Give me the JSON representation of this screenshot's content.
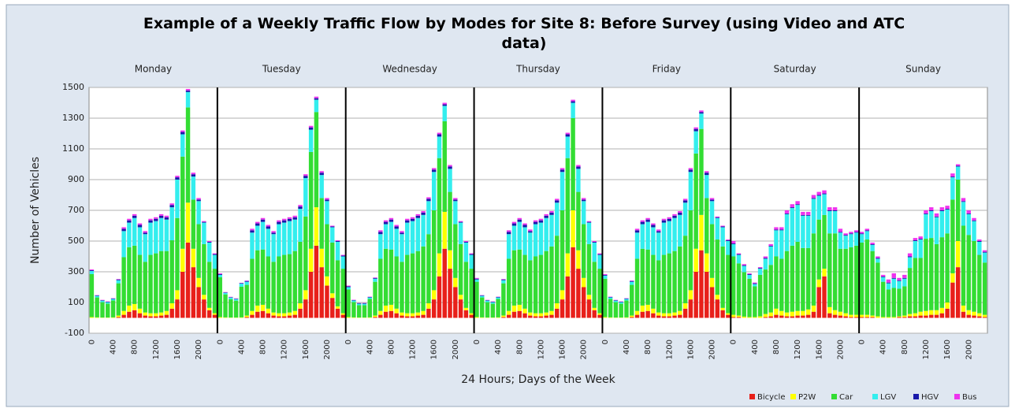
{
  "chart_data": {
    "type": "stacked_bar",
    "title": "Example of a Weekly Traffic Flow by Modes for Site 8: Before Survey (using Video and ATC data)",
    "xlabel": "24 Hours; Days of the Week",
    "ylabel": "Number of Vehicles",
    "days": [
      "Monday",
      "Tuesday",
      "Wednesday",
      "Thursday",
      "Friday",
      "Saturday",
      "Sunday"
    ],
    "categories": [
      "0",
      null,
      null,
      null,
      "400",
      null,
      null,
      null,
      "800",
      null,
      null,
      null,
      "1200",
      null,
      null,
      null,
      "1600",
      null,
      null,
      null,
      "2000",
      null,
      null,
      null,
      "0",
      null,
      null,
      null,
      "400",
      null,
      null,
      null,
      "800",
      null,
      null,
      null,
      "1200",
      null,
      null,
      null,
      "1600",
      null,
      null,
      null,
      "2000",
      null,
      null,
      null,
      "0",
      null,
      null,
      null,
      "400",
      null,
      null,
      null,
      "800",
      null,
      null,
      null,
      "1200",
      null,
      null,
      null,
      "1600",
      null,
      null,
      null,
      "2000",
      null,
      null,
      null,
      "0",
      null,
      null,
      null,
      "400",
      null,
      null,
      null,
      "800",
      null,
      null,
      null,
      "1200",
      null,
      null,
      null,
      "1600",
      null,
      null,
      null,
      "2000",
      null,
      null,
      null,
      "0",
      null,
      null,
      null,
      "400",
      null,
      null,
      null,
      "800",
      null,
      null,
      null,
      "1200",
      null,
      null,
      null,
      "1600",
      null,
      null,
      null,
      "2000",
      null,
      null,
      null,
      "0",
      null,
      null,
      null,
      "400",
      null,
      null,
      null,
      "800",
      null,
      null,
      null,
      "1200",
      null,
      null,
      null,
      "1600",
      null,
      null,
      null,
      "2000",
      null,
      null,
      null,
      "0",
      null,
      null,
      null,
      "400",
      null,
      null,
      null,
      "800",
      null,
      null,
      null,
      "1200",
      null,
      null,
      null,
      "1600",
      null,
      null,
      null,
      "2000",
      null,
      null,
      null
    ],
    "ylim": [
      -100,
      1500
    ],
    "yticks": [
      -100,
      100,
      300,
      500,
      700,
      900,
      1100,
      1300,
      1500
    ],
    "grid": true,
    "legend": "bottom-right",
    "series": [
      {
        "name": "Bicycle",
        "color": "#e8201a",
        "values": [
          0,
          0,
          0,
          0,
          0,
          5,
          20,
          40,
          50,
          30,
          15,
          10,
          10,
          15,
          20,
          60,
          120,
          300,
          490,
          330,
          200,
          120,
          50,
          20,
          0,
          0,
          0,
          0,
          0,
          5,
          20,
          40,
          45,
          30,
          15,
          10,
          10,
          15,
          20,
          60,
          120,
          300,
          470,
          330,
          210,
          130,
          60,
          20,
          0,
          0,
          0,
          0,
          0,
          5,
          20,
          40,
          45,
          30,
          15,
          10,
          10,
          15,
          20,
          60,
          120,
          270,
          450,
          320,
          200,
          120,
          50,
          20,
          0,
          0,
          0,
          0,
          0,
          5,
          20,
          40,
          45,
          30,
          15,
          10,
          10,
          15,
          20,
          60,
          120,
          270,
          460,
          320,
          200,
          120,
          50,
          20,
          0,
          0,
          0,
          0,
          0,
          5,
          20,
          40,
          45,
          30,
          15,
          10,
          10,
          15,
          20,
          60,
          120,
          300,
          440,
          300,
          200,
          120,
          50,
          20,
          5,
          5,
          0,
          0,
          0,
          0,
          5,
          10,
          20,
          15,
          10,
          10,
          15,
          15,
          20,
          40,
          200,
          270,
          30,
          20,
          15,
          10,
          5,
          5,
          5,
          5,
          5,
          0,
          0,
          0,
          0,
          5,
          5,
          10,
          10,
          15,
          15,
          20,
          20,
          30,
          60,
          230,
          330,
          40,
          20,
          15,
          10,
          5
        ]
      },
      {
        "name": "P2W",
        "color": "#ffff00",
        "values": [
          5,
          3,
          2,
          2,
          3,
          10,
          25,
          40,
          40,
          30,
          20,
          20,
          20,
          20,
          25,
          35,
          60,
          150,
          260,
          120,
          60,
          30,
          15,
          10,
          5,
          3,
          2,
          2,
          3,
          10,
          25,
          40,
          40,
          30,
          20,
          20,
          20,
          20,
          25,
          35,
          60,
          150,
          250,
          120,
          60,
          30,
          15,
          10,
          5,
          3,
          2,
          2,
          3,
          10,
          25,
          40,
          40,
          30,
          20,
          20,
          20,
          20,
          25,
          35,
          60,
          150,
          240,
          120,
          60,
          30,
          15,
          10,
          5,
          3,
          2,
          2,
          3,
          10,
          25,
          40,
          40,
          30,
          20,
          20,
          20,
          20,
          25,
          35,
          60,
          150,
          240,
          120,
          60,
          30,
          15,
          10,
          5,
          3,
          2,
          2,
          3,
          10,
          25,
          40,
          40,
          30,
          20,
          20,
          20,
          20,
          25,
          35,
          60,
          150,
          230,
          120,
          60,
          30,
          15,
          10,
          15,
          10,
          8,
          5,
          5,
          10,
          20,
          25,
          40,
          30,
          25,
          30,
          30,
          30,
          35,
          40,
          50,
          50,
          40,
          30,
          25,
          20,
          15,
          15,
          15,
          15,
          10,
          10,
          5,
          5,
          5,
          5,
          10,
          15,
          20,
          25,
          30,
          30,
          30,
          35,
          40,
          60,
          170,
          40,
          30,
          25,
          20,
          15
        ]
      },
      {
        "name": "Car",
        "color": "#33dd33",
        "values": [
          280,
          130,
          100,
          90,
          110,
          210,
          350,
          380,
          380,
          350,
          330,
          380,
          390,
          400,
          390,
          410,
          470,
          600,
          620,
          320,
          350,
          330,
          300,
          290,
          260,
          150,
          120,
          110,
          200,
          200,
          340,
          360,
          360,
          340,
          330,
          370,
          380,
          380,
          390,
          400,
          480,
          630,
          620,
          330,
          340,
          330,
          300,
          290,
          180,
          100,
          80,
          80,
          120,
          220,
          340,
          370,
          360,
          340,
          330,
          380,
          390,
          400,
          420,
          450,
          520,
          620,
          590,
          380,
          350,
          330,
          300,
          290,
          230,
          130,
          100,
          90,
          120,
          210,
          340,
          360,
          360,
          350,
          340,
          370,
          380,
          400,
          420,
          440,
          520,
          620,
          600,
          380,
          350,
          330,
          300,
          290,
          250,
          120,
          100,
          90,
          110,
          200,
          340,
          370,
          360,
          350,
          340,
          380,
          390,
          400,
          420,
          440,
          520,
          620,
          560,
          360,
          350,
          360,
          400,
          380,
          380,
          340,
          290,
          250,
          200,
          270,
          290,
          310,
          340,
          340,
          400,
          430,
          450,
          410,
          400,
          470,
          390,
          350,
          480,
          500,
          410,
          420,
          440,
          450,
          470,
          490,
          420,
          350,
          230,
          180,
          190,
          180,
          190,
          300,
          360,
          350,
          470,
          470,
          430,
          460,
          450,
          480,
          400,
          520,
          490,
          460,
          380,
          340
        ]
      },
      {
        "name": "LGV",
        "color": "#33eeee",
        "values": [
          20,
          10,
          10,
          10,
          10,
          20,
          170,
          160,
          180,
          180,
          180,
          210,
          210,
          215,
          205,
          215,
          250,
          145,
          100,
          150,
          150,
          140,
          125,
          90,
          15,
          10,
          10,
          10,
          20,
          20,
          170,
          160,
          180,
          180,
          180,
          210,
          210,
          215,
          205,
          215,
          250,
          145,
          80,
          150,
          150,
          100,
          120,
          80,
          15,
          10,
          10,
          10,
          10,
          20,
          160,
          160,
          180,
          180,
          180,
          210,
          210,
          215,
          205,
          215,
          250,
          140,
          100,
          150,
          150,
          140,
          125,
          90,
          15,
          10,
          10,
          10,
          10,
          20,
          160,
          160,
          180,
          180,
          180,
          210,
          210,
          215,
          205,
          215,
          250,
          140,
          100,
          150,
          150,
          140,
          125,
          90,
          20,
          10,
          10,
          10,
          10,
          20,
          170,
          160,
          180,
          180,
          180,
          210,
          210,
          215,
          205,
          215,
          250,
          145,
          100,
          150,
          150,
          140,
          125,
          90,
          80,
          55,
          40,
          25,
          15,
          40,
          70,
          120,
          170,
          185,
          240,
          245,
          240,
          210,
          210,
          225,
          155,
          135,
          145,
          145,
          105,
          85,
          85,
          85,
          55,
          55,
          40,
          25,
          30,
          40,
          60,
          50,
          50,
          70,
          110,
          120,
          160,
          175,
          175,
          170,
          155,
          145,
          85,
          155,
          135,
          130,
          85,
          65
        ]
      },
      {
        "name": "HGV",
        "color": "#1a1aaa",
        "values": [
          5,
          3,
          3,
          3,
          3,
          5,
          15,
          15,
          15,
          15,
          10,
          15,
          15,
          15,
          15,
          15,
          15,
          15,
          10,
          15,
          10,
          5,
          5,
          5,
          5,
          3,
          3,
          3,
          3,
          5,
          15,
          15,
          15,
          15,
          10,
          15,
          15,
          15,
          15,
          15,
          15,
          15,
          10,
          15,
          10,
          5,
          5,
          5,
          5,
          3,
          3,
          3,
          3,
          5,
          15,
          15,
          15,
          15,
          10,
          15,
          15,
          15,
          15,
          15,
          15,
          15,
          10,
          15,
          10,
          5,
          5,
          5,
          5,
          3,
          3,
          3,
          3,
          5,
          15,
          15,
          15,
          15,
          10,
          15,
          15,
          15,
          15,
          15,
          15,
          15,
          10,
          15,
          10,
          5,
          5,
          5,
          5,
          3,
          3,
          3,
          3,
          5,
          15,
          15,
          15,
          15,
          10,
          15,
          15,
          15,
          15,
          15,
          15,
          15,
          10,
          15,
          10,
          5,
          5,
          5,
          5,
          5,
          5,
          5,
          5,
          5,
          5,
          5,
          5,
          5,
          5,
          5,
          5,
          5,
          5,
          5,
          5,
          5,
          5,
          5,
          5,
          5,
          5,
          5,
          5,
          5,
          5,
          5,
          5,
          5,
          5,
          5,
          5,
          5,
          5,
          5,
          5,
          5,
          5,
          5,
          5,
          5,
          5,
          5,
          5,
          5,
          5,
          5
        ]
      },
      {
        "name": "Bus",
        "color": "#ee33ee",
        "values": [
          5,
          2,
          2,
          2,
          2,
          3,
          10,
          10,
          10,
          10,
          10,
          10,
          10,
          10,
          10,
          10,
          10,
          10,
          10,
          10,
          10,
          5,
          5,
          5,
          5,
          2,
          2,
          2,
          2,
          3,
          10,
          10,
          10,
          10,
          10,
          10,
          10,
          10,
          10,
          10,
          10,
          10,
          10,
          10,
          10,
          5,
          5,
          5,
          5,
          2,
          2,
          2,
          2,
          3,
          10,
          10,
          10,
          10,
          10,
          10,
          10,
          10,
          10,
          10,
          10,
          10,
          10,
          10,
          10,
          5,
          5,
          5,
          5,
          2,
          2,
          2,
          2,
          3,
          10,
          10,
          10,
          10,
          10,
          10,
          10,
          10,
          10,
          10,
          10,
          10,
          10,
          10,
          10,
          5,
          5,
          5,
          5,
          2,
          2,
          2,
          2,
          3,
          10,
          10,
          10,
          10,
          10,
          10,
          10,
          10,
          10,
          10,
          10,
          10,
          10,
          10,
          10,
          5,
          5,
          5,
          15,
          5,
          7,
          5,
          5,
          5,
          10,
          10,
          15,
          15,
          20,
          20,
          20,
          20,
          20,
          20,
          20,
          20,
          20,
          20,
          20,
          10,
          10,
          10,
          10,
          10,
          10,
          10,
          10,
          20,
          30,
          15,
          20,
          20,
          15,
          15,
          20,
          20,
          20,
          20,
          20,
          20,
          10,
          20,
          20,
          15,
          10,
          10
        ]
      }
    ]
  }
}
